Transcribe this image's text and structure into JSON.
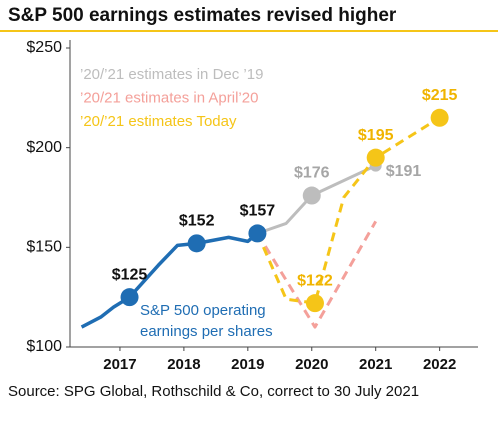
{
  "chart_data": {
    "type": "line",
    "title": "S&P 500 earnings estimates revised higher",
    "xlim": [
      2016.2,
      2022.6
    ],
    "xticks": [
      2017,
      2018,
      2019,
      2020,
      2021,
      2022
    ],
    "ylim": [
      100,
      250
    ],
    "yticks": [
      {
        "value": 100,
        "label": "$100"
      },
      {
        "value": 150,
        "label": "$150"
      },
      {
        "value": 200,
        "label": "$200"
      },
      {
        "value": 250,
        "label": "$250"
      }
    ],
    "grid": false,
    "series": [
      {
        "name": "S&P 500 operating earnings per shares",
        "color": "#1f6db3",
        "dashed": false,
        "x": [
          2016.4,
          2016.7,
          2016.9,
          2017.15,
          2017.6,
          2017.9,
          2018.2,
          2018.7,
          2019.0,
          2019.15
        ],
        "values": [
          110,
          115,
          120,
          125,
          141,
          151,
          152,
          155,
          153,
          157
        ],
        "value_labels": [
          null,
          null,
          null,
          "$125",
          null,
          null,
          "$152",
          null,
          null,
          "$157"
        ]
      },
      {
        "name": "’20/’21 estimates in Dec ’19",
        "color": "#bdbdbd",
        "dashed": false,
        "x": [
          2019.15,
          2019.6,
          2020,
          2021
        ],
        "values": [
          157,
          162,
          176,
          191
        ],
        "value_labels": [
          null,
          null,
          "$176",
          "$191"
        ]
      },
      {
        "name": "’20/21 estimates in April’20",
        "color": "#f4a09a",
        "dashed": true,
        "x": [
          2019.15,
          2020.05,
          2021
        ],
        "values": [
          157,
          110,
          163
        ],
        "value_labels": [
          null,
          null,
          null
        ]
      },
      {
        "name": "’20/’21 estimates Today",
        "color": "#f5c518",
        "dashed": true,
        "x": [
          2019.15,
          2019.6,
          2020.05,
          2020.5,
          2021,
          2022
        ],
        "values": [
          157,
          124,
          122,
          175,
          195,
          215
        ],
        "value_labels": [
          null,
          null,
          "$122",
          null,
          "$195",
          "$215"
        ]
      }
    ],
    "source": "Source: SPG Global, Rothschild & Co, correct to 30 July 2021"
  }
}
